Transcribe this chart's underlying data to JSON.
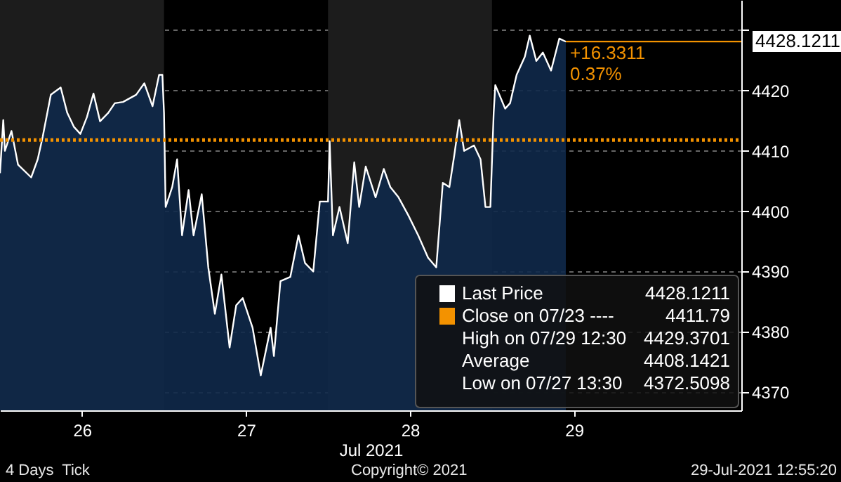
{
  "chart_data": {
    "type": "area",
    "xlabel": "Jul 2021",
    "x": [
      25.5,
      25.52,
      25.53,
      25.57,
      25.61,
      25.69,
      25.73,
      25.76,
      25.81,
      25.87,
      25.91,
      25.95,
      25.99,
      26.03,
      26.07,
      26.11,
      26.16,
      26.2,
      26.25,
      26.33,
      26.38,
      26.43,
      26.47,
      26.49,
      26.5,
      26.51,
      26.55,
      26.58,
      26.61,
      26.65,
      26.68,
      26.73,
      26.77,
      26.81,
      26.85,
      26.9,
      26.94,
      26.98,
      27.04,
      27.09,
      27.15,
      27.17,
      27.21,
      27.27,
      27.32,
      27.36,
      27.41,
      27.45,
      27.5,
      27.51,
      27.53,
      27.57,
      27.62,
      27.66,
      27.69,
      27.73,
      27.79,
      27.84,
      27.88,
      27.93,
      27.99,
      28.05,
      28.11,
      28.16,
      28.2,
      28.24,
      28.27,
      28.3,
      28.33,
      28.39,
      28.43,
      28.46,
      28.49,
      28.51,
      28.52,
      28.58,
      28.61,
      28.65,
      28.7,
      28.73,
      28.77,
      28.81,
      28.86,
      28.91,
      28.95
    ],
    "series": [
      {
        "name": "Last Price",
        "color": "#ffffff",
        "values": [
          4406.3,
          4415.1,
          4410.0,
          4413.3,
          4407.7,
          4405.6,
          4408.6,
          4412.3,
          4419.3,
          4420.5,
          4416.3,
          4414.0,
          4412.8,
          4415.6,
          4419.5,
          4414.9,
          4416.3,
          4417.9,
          4418.1,
          4419.3,
          4421.2,
          4417.4,
          4422.6,
          4422.6,
          4416.3,
          4400.7,
          4404.0,
          4408.6,
          4396.0,
          4403.5,
          4396.0,
          4402.8,
          4390.7,
          4383.0,
          4389.5,
          4377.4,
          4384.4,
          4385.6,
          4380.7,
          4372.8,
          4380.7,
          4376.0,
          4388.4,
          4389.1,
          4396.0,
          4391.4,
          4390.0,
          4401.6,
          4401.6,
          4411.6,
          4396.0,
          4400.7,
          4394.7,
          4408.1,
          4400.7,
          4407.4,
          4402.3,
          4407.0,
          4404.0,
          4402.3,
          4399.3,
          4396.0,
          4392.3,
          4390.7,
          4404.7,
          4404.0,
          4409.3,
          4415.1,
          4410.0,
          4410.9,
          4408.6,
          4400.7,
          4400.7,
          4416.3,
          4420.9,
          4417.0,
          4417.9,
          4422.6,
          4425.6,
          4429.1,
          4424.9,
          4426.3,
          4423.3,
          4428.6,
          4428.1
        ]
      }
    ],
    "xlim": [
      25.5,
      30.02
    ],
    "xticks": [
      26,
      27,
      28,
      29
    ],
    "ylim": [
      4367,
      4435
    ],
    "yticks": [
      4370,
      4380,
      4390,
      4400,
      4410,
      4420,
      {
        "value": 4430,
        "label": null
      }
    ],
    "grid": "y",
    "legend": "bottom right",
    "ref_lines": [
      {
        "axis": "y",
        "value": 4411.79,
        "label": "Close on 07/23 ----",
        "color": "#f39200",
        "line_style": "dotted"
      },
      {
        "axis": "y",
        "value": 4428.1211,
        "label": "4428.1211",
        "color": "#f39200",
        "line_style": "solid"
      }
    ],
    "bands": [
      {
        "axis": "x",
        "from": 25.5,
        "to": 26.5,
        "color": "#1c1c1c"
      },
      {
        "axis": "x",
        "from": 27.5,
        "to": 28.5,
        "color": "#1c1c1c"
      }
    ],
    "annotations": [
      "+16.3311",
      "0.37%",
      "4428.1211",
      "4411.79",
      "High on 07/29 12:30",
      "4429.3701",
      "Average",
      "4408.1421",
      "Low on 07/27 13:30",
      "4372.5098",
      "4 Days  Tick",
      "Copyright© 2021",
      "29-Jul-2021 12:55:20"
    ]
  }
}
